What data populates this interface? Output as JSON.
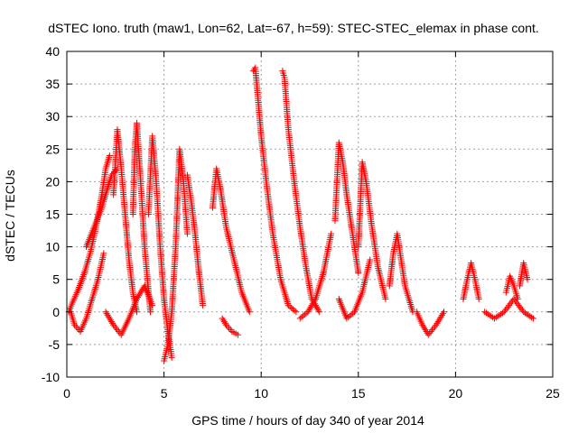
{
  "chart_data": {
    "type": "scatter",
    "title": "dSTEC Iono. truth (maw1, Lon=62, Lat=-67, h=59): STEC-STEC_elemax in phase cont.",
    "xlabel": "GPS time / hours of day 340 of year 2014",
    "ylabel": "dSTEC  / TECUs",
    "xlim": [
      0,
      25
    ],
    "ylim": [
      -10,
      40
    ],
    "xticks": [
      0,
      5,
      10,
      15,
      20,
      25
    ],
    "yticks": [
      -10,
      -5,
      0,
      5,
      10,
      15,
      20,
      25,
      30,
      35,
      40
    ],
    "grid": true,
    "marker": "+",
    "color": "#ff0000",
    "series": [
      {
        "x": [
          0.1,
          0.3,
          0.6,
          0.9,
          1.2,
          1.5,
          1.8,
          2.0,
          2.2
        ],
        "y": [
          0.0,
          1.5,
          3.5,
          6.0,
          9.0,
          13.0,
          18.0,
          22.0,
          24.0
        ]
      },
      {
        "x": [
          0.2,
          0.4,
          0.7,
          1.0,
          1.3,
          1.6,
          1.9
        ],
        "y": [
          0.0,
          -2.0,
          -3.0,
          -1.0,
          2.0,
          5.0,
          9.0
        ]
      },
      {
        "x": [
          1.0,
          1.4,
          1.8,
          2.1,
          2.3,
          2.6
        ],
        "y": [
          10.0,
          13.0,
          16.0,
          19.0,
          21.0,
          22.0
        ]
      },
      {
        "x": [
          2.4,
          2.6,
          2.8,
          3.0,
          3.2,
          3.4,
          3.6
        ],
        "y": [
          18.0,
          28.0,
          22.0,
          15.0,
          8.0,
          3.0,
          0.0
        ]
      },
      {
        "x": [
          3.4,
          3.5,
          3.6,
          3.8,
          4.0,
          4.3
        ],
        "y": [
          15.0,
          25.0,
          29.0,
          20.0,
          10.0,
          0.0
        ]
      },
      {
        "x": [
          2.0,
          2.4,
          2.8,
          3.2,
          3.6,
          4.0,
          4.4
        ],
        "y": [
          0.0,
          -2.0,
          -3.5,
          -1.0,
          2.0,
          4.0,
          1.0
        ]
      },
      {
        "x": [
          4.2,
          4.4,
          4.6,
          4.8,
          5.0,
          5.2,
          5.4
        ],
        "y": [
          15.0,
          27.0,
          20.0,
          10.0,
          2.0,
          -3.0,
          -7.0
        ]
      },
      {
        "x": [
          5.0,
          5.2,
          5.4,
          5.6,
          5.8,
          6.0,
          6.2
        ],
        "y": [
          -7.5,
          -5.0,
          0.0,
          10.0,
          25.0,
          20.0,
          12.0
        ]
      },
      {
        "x": [
          6.2,
          6.4,
          6.6,
          6.8,
          7.0
        ],
        "y": [
          21.0,
          17.0,
          12.0,
          6.0,
          1.0
        ]
      },
      {
        "x": [
          7.5,
          7.7,
          7.9,
          8.2,
          8.6,
          9.0,
          9.4
        ],
        "y": [
          16.0,
          22.0,
          19.0,
          13.0,
          8.0,
          3.0,
          0.0
        ]
      },
      {
        "x": [
          8.0,
          8.2,
          8.5,
          8.8
        ],
        "y": [
          -1.0,
          -2.0,
          -3.0,
          -3.5
        ]
      },
      {
        "x": [
          9.6,
          9.7,
          9.8,
          10.0,
          10.3,
          10.6,
          11.0,
          11.4,
          11.8
        ],
        "y": [
          37.0,
          37.5,
          34.0,
          27.0,
          19.0,
          12.0,
          5.0,
          1.0,
          0.0
        ]
      },
      {
        "x": [
          11.1,
          11.2,
          11.4,
          11.7,
          12.0,
          12.3,
          12.6,
          13.0
        ],
        "y": [
          37.0,
          36.0,
          28.0,
          20.0,
          13.0,
          7.0,
          2.0,
          0.0
        ]
      },
      {
        "x": [
          12.0,
          12.4,
          12.8,
          13.2,
          13.6
        ],
        "y": [
          -1.0,
          0.0,
          2.0,
          6.0,
          12.0
        ]
      },
      {
        "x": [
          13.8,
          14.0,
          14.2,
          14.4,
          14.7,
          15.0
        ],
        "y": [
          14.0,
          26.0,
          23.0,
          18.0,
          12.0,
          6.0
        ]
      },
      {
        "x": [
          14.0,
          14.4,
          14.8,
          15.2,
          15.6
        ],
        "y": [
          2.0,
          -1.0,
          0.0,
          3.0,
          8.0
        ]
      },
      {
        "x": [
          15.0,
          15.2,
          15.4,
          15.7,
          16.0,
          16.4
        ],
        "y": [
          10.0,
          23.0,
          20.0,
          13.0,
          7.0,
          2.0
        ]
      },
      {
        "x": [
          16.6,
          16.8,
          17.0,
          17.2,
          17.4,
          17.8
        ],
        "y": [
          4.0,
          9.0,
          12.0,
          8.0,
          4.0,
          0.0
        ]
      },
      {
        "x": [
          18.0,
          18.3,
          18.6,
          19.0,
          19.4
        ],
        "y": [
          0.0,
          -2.0,
          -3.5,
          -2.0,
          0.0
        ]
      },
      {
        "x": [
          20.4,
          20.6,
          20.8,
          21.0,
          21.2
        ],
        "y": [
          2.0,
          5.0,
          7.5,
          5.0,
          2.0
        ]
      },
      {
        "x": [
          21.5,
          22.0,
          22.5,
          23.0,
          23.5,
          24.0
        ],
        "y": [
          0.0,
          -1.0,
          0.0,
          2.0,
          0.0,
          -1.0
        ]
      },
      {
        "x": [
          22.6,
          22.8,
          23.0,
          23.2
        ],
        "y": [
          3.0,
          5.5,
          4.0,
          2.0
        ]
      },
      {
        "x": [
          23.3,
          23.5,
          23.7
        ],
        "y": [
          4.0,
          7.5,
          5.0
        ]
      }
    ]
  }
}
